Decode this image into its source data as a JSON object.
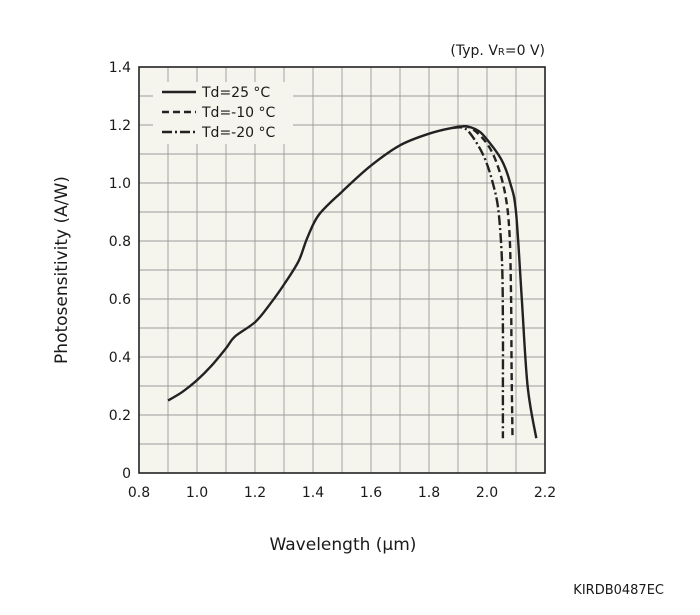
{
  "chart_data": {
    "type": "line",
    "condition_prefix": "(Typ. V",
    "condition_subscript": "R",
    "condition_suffix": "=0 V)",
    "xlabel": "Wavelength (µm)",
    "ylabel": "Photosensitivity (A/W)",
    "xlim": [
      0.8,
      2.2
    ],
    "ylim": [
      0,
      1.4
    ],
    "xticks": [
      "0.8",
      "1.0",
      "1.2",
      "1.4",
      "1.6",
      "1.8",
      "2.0",
      "2.2"
    ],
    "xtick_values": [
      0.8,
      1.0,
      1.2,
      1.4,
      1.6,
      1.8,
      2.0,
      2.2
    ],
    "yticks": [
      "0",
      "0.2",
      "0.4",
      "0.6",
      "0.8",
      "1.0",
      "1.2",
      "1.4"
    ],
    "ytick_values": [
      0,
      0.2,
      0.4,
      0.6,
      0.8,
      1.0,
      1.2,
      1.4
    ],
    "grid": true,
    "legend_position": "top-left",
    "series": [
      {
        "name": "Td=25 °C",
        "style": "solid",
        "points": [
          [
            0.9,
            0.25
          ],
          [
            0.95,
            0.28
          ],
          [
            1.0,
            0.32
          ],
          [
            1.05,
            0.37
          ],
          [
            1.1,
            0.43
          ],
          [
            1.13,
            0.47
          ],
          [
            1.2,
            0.52
          ],
          [
            1.25,
            0.58
          ],
          [
            1.3,
            0.65
          ],
          [
            1.35,
            0.73
          ],
          [
            1.38,
            0.81
          ],
          [
            1.42,
            0.89
          ],
          [
            1.5,
            0.97
          ],
          [
            1.6,
            1.06
          ],
          [
            1.7,
            1.13
          ],
          [
            1.8,
            1.17
          ],
          [
            1.88,
            1.19
          ],
          [
            1.93,
            1.195
          ],
          [
            1.97,
            1.18
          ],
          [
            2.0,
            1.15
          ],
          [
            2.05,
            1.08
          ],
          [
            2.08,
            1.0
          ],
          [
            2.1,
            0.9
          ],
          [
            2.12,
            0.6
          ],
          [
            2.14,
            0.3
          ],
          [
            2.17,
            0.12
          ]
        ]
      },
      {
        "name": "Td=-10 °C",
        "style": "dashed",
        "points": [
          [
            1.88,
            1.19
          ],
          [
            1.93,
            1.195
          ],
          [
            1.97,
            1.17
          ],
          [
            2.01,
            1.12
          ],
          [
            2.04,
            1.05
          ],
          [
            2.065,
            0.95
          ],
          [
            2.078,
            0.82
          ],
          [
            2.083,
            0.6
          ],
          [
            2.085,
            0.35
          ],
          [
            2.088,
            0.12
          ]
        ]
      },
      {
        "name": "Td=-20 °C",
        "style": "dashdot",
        "points": [
          [
            1.88,
            1.19
          ],
          [
            1.92,
            1.19
          ],
          [
            1.95,
            1.16
          ],
          [
            1.99,
            1.09
          ],
          [
            2.02,
            1.0
          ],
          [
            2.04,
            0.9
          ],
          [
            2.052,
            0.72
          ],
          [
            2.055,
            0.5
          ],
          [
            2.055,
            0.3
          ],
          [
            2.055,
            0.12
          ]
        ]
      }
    ]
  },
  "footer": {
    "code": "KIRDB0487EC"
  },
  "colors": {
    "background": "#ffffff",
    "plot_background": "#f5f5ee",
    "grid": "#9a9a9a",
    "frame": "#222222",
    "line": "#222222"
  }
}
